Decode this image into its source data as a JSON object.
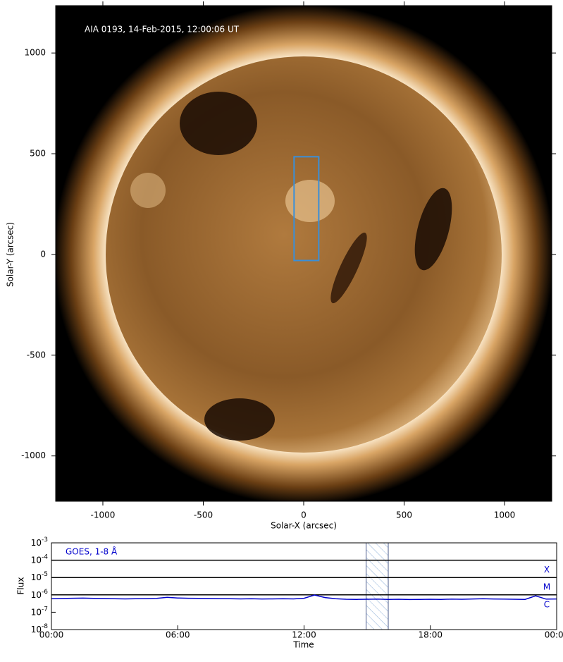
{
  "chart_data": [
    {
      "type": "image",
      "annotation": "AIA 0193, 14-Feb-2015, 12:00:06 UT",
      "x_label": "Solar-X (arcsec)",
      "y_label": "Solar-Y (arcsec)",
      "xlim": [
        -1235,
        1235
      ],
      "ylim": [
        -1225,
        1235
      ],
      "xticks": [
        -1000,
        -500,
        0,
        500,
        1000
      ],
      "yticks": [
        -1000,
        -500,
        0,
        500,
        1000
      ],
      "box": {
        "x": [
          -48,
          75
        ],
        "y": [
          -30,
          485
        ],
        "color": "#3a8fd8"
      }
    },
    {
      "type": "line",
      "log_y": true,
      "x_label": "Time",
      "y_label": "Flux",
      "x": [
        0,
        0.5,
        1,
        1.5,
        2,
        2.5,
        3,
        3.5,
        4,
        4.5,
        5,
        5.5,
        6,
        6.5,
        7,
        7.5,
        8,
        8.5,
        9,
        9.5,
        10,
        10.5,
        11,
        11.5,
        12,
        12.5,
        13,
        13.5,
        14,
        14.5,
        15,
        15.5,
        16,
        16.5,
        17,
        17.5,
        18,
        18.5,
        19,
        19.5,
        20,
        20.5,
        21,
        21.5,
        22,
        22.5,
        23,
        23.5,
        24
      ],
      "series": [
        {
          "name": "GOES, 1-8 Å",
          "color": "#0000cc",
          "values": [
            6e-07,
            6.2e-07,
            6.4e-07,
            6.5e-07,
            6.3e-07,
            6.2e-07,
            6e-07,
            5.9e-07,
            6e-07,
            6.1e-07,
            6.3e-07,
            7.2e-07,
            6.6e-07,
            6.4e-07,
            6.3e-07,
            6.2e-07,
            6.1e-07,
            6e-07,
            5.9e-07,
            6e-07,
            5.8e-07,
            5.9e-07,
            6e-07,
            5.9e-07,
            6.4e-07,
            9.8e-07,
            7e-07,
            6e-07,
            5.6e-07,
            5.5e-07,
            5.6e-07,
            5.7e-07,
            5.5e-07,
            5.6e-07,
            5.4e-07,
            5.5e-07,
            5.6e-07,
            5.5e-07,
            5.7e-07,
            5.6e-07,
            5.8e-07,
            6e-07,
            5.8e-07,
            5.7e-07,
            5.6e-07,
            5.5e-07,
            8.8e-07,
            5.7e-07,
            5.8e-07
          ]
        }
      ],
      "xlim": [
        0,
        24
      ],
      "xticks": [
        {
          "value": 0,
          "label": "00:00"
        },
        {
          "value": 6,
          "label": "06:00"
        },
        {
          "value": 12,
          "label": "12:00"
        },
        {
          "value": 18,
          "label": "18:00"
        },
        {
          "value": 24,
          "label": "00:00"
        }
      ],
      "ylim": [
        1e-08,
        0.001
      ],
      "yticks": [
        {
          "value": 1e-08,
          "label": "10-8"
        },
        {
          "value": 1e-07,
          "label": "10-7"
        },
        {
          "value": 1e-06,
          "label": "10-6"
        },
        {
          "value": 1e-05,
          "label": "10-5"
        },
        {
          "value": 0.0001,
          "label": "10-4"
        },
        {
          "value": 0.001,
          "label": "10-3"
        }
      ],
      "flare_levels": [
        {
          "value": 0.0001,
          "label": "X"
        },
        {
          "value": 1e-05,
          "label": "M"
        },
        {
          "value": 1e-06,
          "label": "C"
        }
      ],
      "highlight": [
        14.95,
        16.0
      ]
    }
  ]
}
